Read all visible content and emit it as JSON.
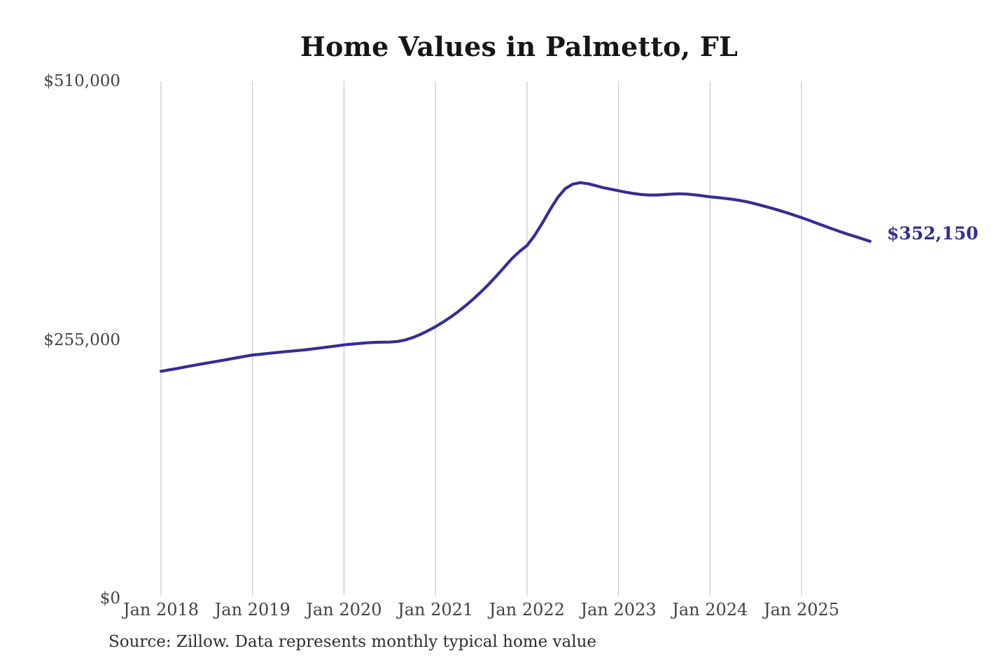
{
  "title": "Home Values in Palmetto, FL",
  "source_note": "Source: Zillow. Data represents monthly typical home value",
  "colors": {
    "line": "#332d96",
    "grid": "#cccccc",
    "title": "#151515",
    "axis_label": "#424242",
    "note": "#2e2e2e",
    "background": "#ffffff"
  },
  "chart_data": {
    "type": "line",
    "title": "Home Values in Palmetto, FL",
    "unit": "USD",
    "frequency": "monthly",
    "start": "Jan 2018",
    "end": "Oct 2025",
    "ylim": [
      0,
      510000
    ],
    "grid": "vertical-only",
    "legend": "none",
    "end_label": "$352,150",
    "latest_value": 352150,
    "y_ticks": [
      {
        "label": "$0",
        "value": 0
      },
      {
        "label": "$255,000",
        "value": 255000
      },
      {
        "label": "$510,000",
        "value": 510000
      }
    ],
    "x_ticks": [
      "Jan 2018",
      "Jan 2019",
      "Jan 2020",
      "Jan 2021",
      "Jan 2022",
      "Jan 2023",
      "Jan 2024",
      "Jan 2025"
    ],
    "values": [
      224000,
      225300,
      226600,
      228000,
      229400,
      230800,
      232100,
      233400,
      234700,
      236000,
      237400,
      238700,
      240000,
      240800,
      241600,
      242400,
      243100,
      243800,
      244500,
      245300,
      246200,
      247100,
      248000,
      249000,
      250000,
      250800,
      251500,
      252100,
      252500,
      252700,
      252800,
      253400,
      254800,
      257200,
      260300,
      264000,
      268000,
      272500,
      277500,
      283000,
      289000,
      295500,
      302500,
      310000,
      318000,
      326500,
      335000,
      342000,
      348000,
      358000,
      370000,
      383000,
      395000,
      404000,
      408500,
      410000,
      409000,
      407000,
      405000,
      403500,
      402000,
      400500,
      399300,
      398300,
      397800,
      397800,
      398200,
      398700,
      399000,
      398700,
      398000,
      397000,
      396000,
      395300,
      394500,
      393500,
      392300,
      390800,
      389000,
      387000,
      385000,
      382800,
      380500,
      378000,
      375500,
      372800,
      370000,
      367200,
      364500,
      361800,
      359300,
      357000,
      354500,
      352150
    ]
  }
}
